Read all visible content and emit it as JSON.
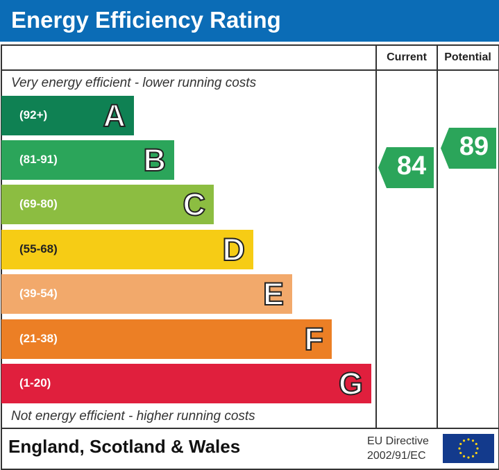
{
  "title": "Energy Efficiency Rating",
  "columns": {
    "current": "Current",
    "potential": "Potential"
  },
  "top_note": "Very energy efficient - lower running costs",
  "bottom_note": "Not energy efficient - higher running costs",
  "footer": {
    "region": "England, Scotland & Wales",
    "directive_line1": "EU Directive",
    "directive_line2": "2002/91/EC",
    "flag_icon": "eu-flag-icon"
  },
  "chart_data": {
    "type": "bar",
    "title": "Energy Efficiency Rating",
    "categories": [
      "A",
      "B",
      "C",
      "D",
      "E",
      "F",
      "G"
    ],
    "ranges": [
      "(92+)",
      "(81-91)",
      "(69-80)",
      "(55-68)",
      "(39-54)",
      "(21-38)",
      "(1-20)"
    ],
    "colors": [
      "#0f8153",
      "#2ba55a",
      "#8cbd41",
      "#f6cc15",
      "#f2a96b",
      "#ec7f25",
      "#e01f3d"
    ],
    "current": {
      "value": "84",
      "band": "B",
      "color": "#2ba55a"
    },
    "potential": {
      "value": "89",
      "band": "B",
      "color": "#2ba55a"
    }
  }
}
